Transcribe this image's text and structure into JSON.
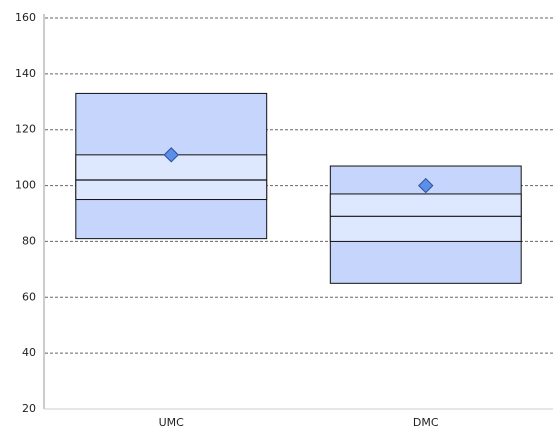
{
  "chart_data": {
    "type": "box",
    "categories": [
      "UMC",
      "DMC"
    ],
    "max": [
      133,
      107
    ],
    "q3": [
      111,
      97
    ],
    "median": [
      102,
      89
    ],
    "q1": [
      95,
      80
    ],
    "min": [
      81,
      65
    ],
    "mean": [
      111,
      100
    ],
    "outer_color": "#c5d5fb",
    "inner_color": "#dde7fd",
    "mean_color": "#5b8fe8",
    "ylim": [
      20,
      160
    ],
    "yticks": [
      20,
      40,
      60,
      80,
      100,
      120,
      140,
      160
    ],
    "grid": true
  }
}
